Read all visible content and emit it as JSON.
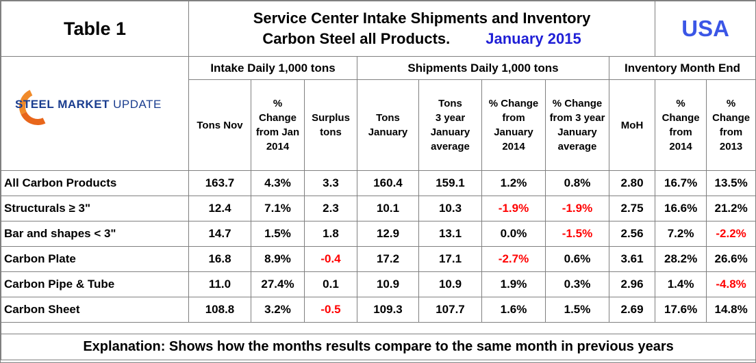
{
  "header": {
    "table_label": "Table 1",
    "title_line1": "Service Center Intake Shipments and Inventory",
    "title_line2": "Carbon Steel all Products.",
    "date": "January 2015",
    "region": "USA"
  },
  "logo": {
    "bold_part": "STEEL MARKET",
    "light_part": " UPDATE"
  },
  "groups": {
    "intake": "Intake Daily 1,000 tons",
    "shipments": "Shipments Daily 1,000 tons",
    "inventory": "Inventory Month End"
  },
  "columns": [
    "Tons Nov",
    "% Change from Jan 2014",
    "Surplus tons",
    "Tons January",
    "Tons 3 year January average",
    "% Change from January 2014",
    "% Change from 3 year January average",
    "MoH",
    "% Change from 2014",
    "% Change from 2013"
  ],
  "column_lines": [
    [
      "Tons Nov"
    ],
    [
      "%",
      "Change",
      "from Jan",
      "2014"
    ],
    [
      "Surplus",
      "tons"
    ],
    [
      "Tons",
      "January"
    ],
    [
      "Tons",
      "3 year",
      "January",
      "average"
    ],
    [
      "% Change",
      "from",
      "January",
      "2014"
    ],
    [
      "% Change",
      "from 3 year",
      "January",
      "average"
    ],
    [
      "MoH"
    ],
    [
      "%",
      "Change",
      "from",
      "2014"
    ],
    [
      "%",
      "Change",
      "from",
      "2013"
    ]
  ],
  "rows": [
    {
      "label": "All Carbon Products",
      "values": [
        "163.7",
        "4.3%",
        "3.3",
        "160.4",
        "159.1",
        "1.2%",
        "0.8%",
        "2.80",
        "16.7%",
        "13.5%"
      ]
    },
    {
      "label": "Structurals ≥ 3\"",
      "values": [
        "12.4",
        "7.1%",
        "2.3",
        "10.1",
        "10.3",
        "-1.9%",
        "-1.9%",
        "2.75",
        "16.6%",
        "21.2%"
      ]
    },
    {
      "label": "Bar and shapes < 3\"",
      "values": [
        "14.7",
        "1.5%",
        "1.8",
        "12.9",
        "13.1",
        "0.0%",
        "-1.5%",
        "2.56",
        "7.2%",
        "-2.2%"
      ]
    },
    {
      "label": "Carbon Plate",
      "values": [
        "16.8",
        "8.9%",
        "-0.4",
        "17.2",
        "17.1",
        "-2.7%",
        "0.6%",
        "3.61",
        "28.2%",
        "26.6%"
      ]
    },
    {
      "label": "Carbon Pipe & Tube",
      "values": [
        "11.0",
        "27.4%",
        "0.1",
        "10.9",
        "10.9",
        "1.9%",
        "0.3%",
        "2.96",
        "1.4%",
        "-4.8%"
      ]
    },
    {
      "label": "Carbon Sheet",
      "values": [
        "108.8",
        "3.2%",
        "-0.5",
        "109.3",
        "107.7",
        "1.6%",
        "1.5%",
        "2.69",
        "17.6%",
        "14.8%"
      ]
    }
  ],
  "explanation": "Explanation: Shows how the months results compare to the same month in previous years",
  "colors": {
    "negative": "#ff0000",
    "date": "#1f1fd6",
    "region": "#3b56e6",
    "logo_blue": "#1a3d8f",
    "logo_orange": "#e8661b"
  }
}
